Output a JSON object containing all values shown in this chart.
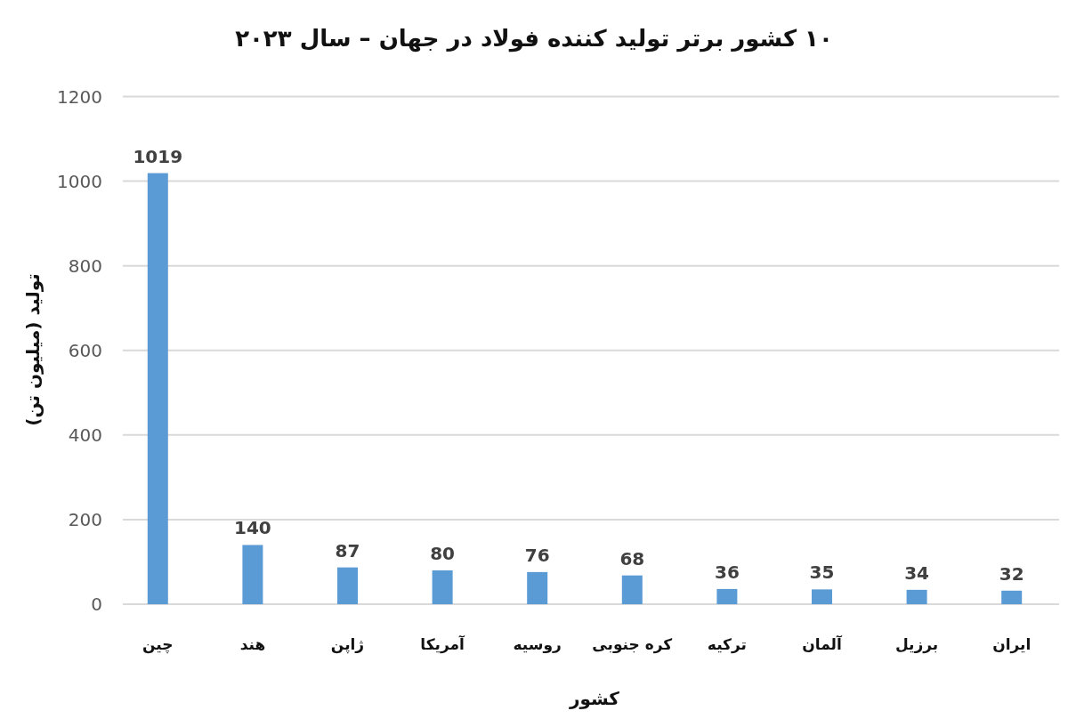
{
  "chart_data": {
    "type": "bar",
    "title": "۱۰ کشور برتر تولید کننده فولاد در جهان – سال ۲۰۲۳",
    "xlabel": "کشور",
    "ylabel": "تولید (میلیون تن)",
    "categories": [
      "چین",
      "هند",
      "ژاپن",
      "آمریکا",
      "روسیه",
      "کره جنوبی",
      "ترکیه",
      "آلمان",
      "برزیل",
      "ایران"
    ],
    "values": [
      1019,
      140,
      87,
      80,
      76,
      68,
      36,
      35,
      34,
      32
    ],
    "color": "#5b9bd5",
    "ylim": [
      0,
      1200
    ],
    "yticks": [
      0,
      200,
      400,
      600,
      800,
      1000,
      1200
    ],
    "grid": "y",
    "data_labels": true
  }
}
